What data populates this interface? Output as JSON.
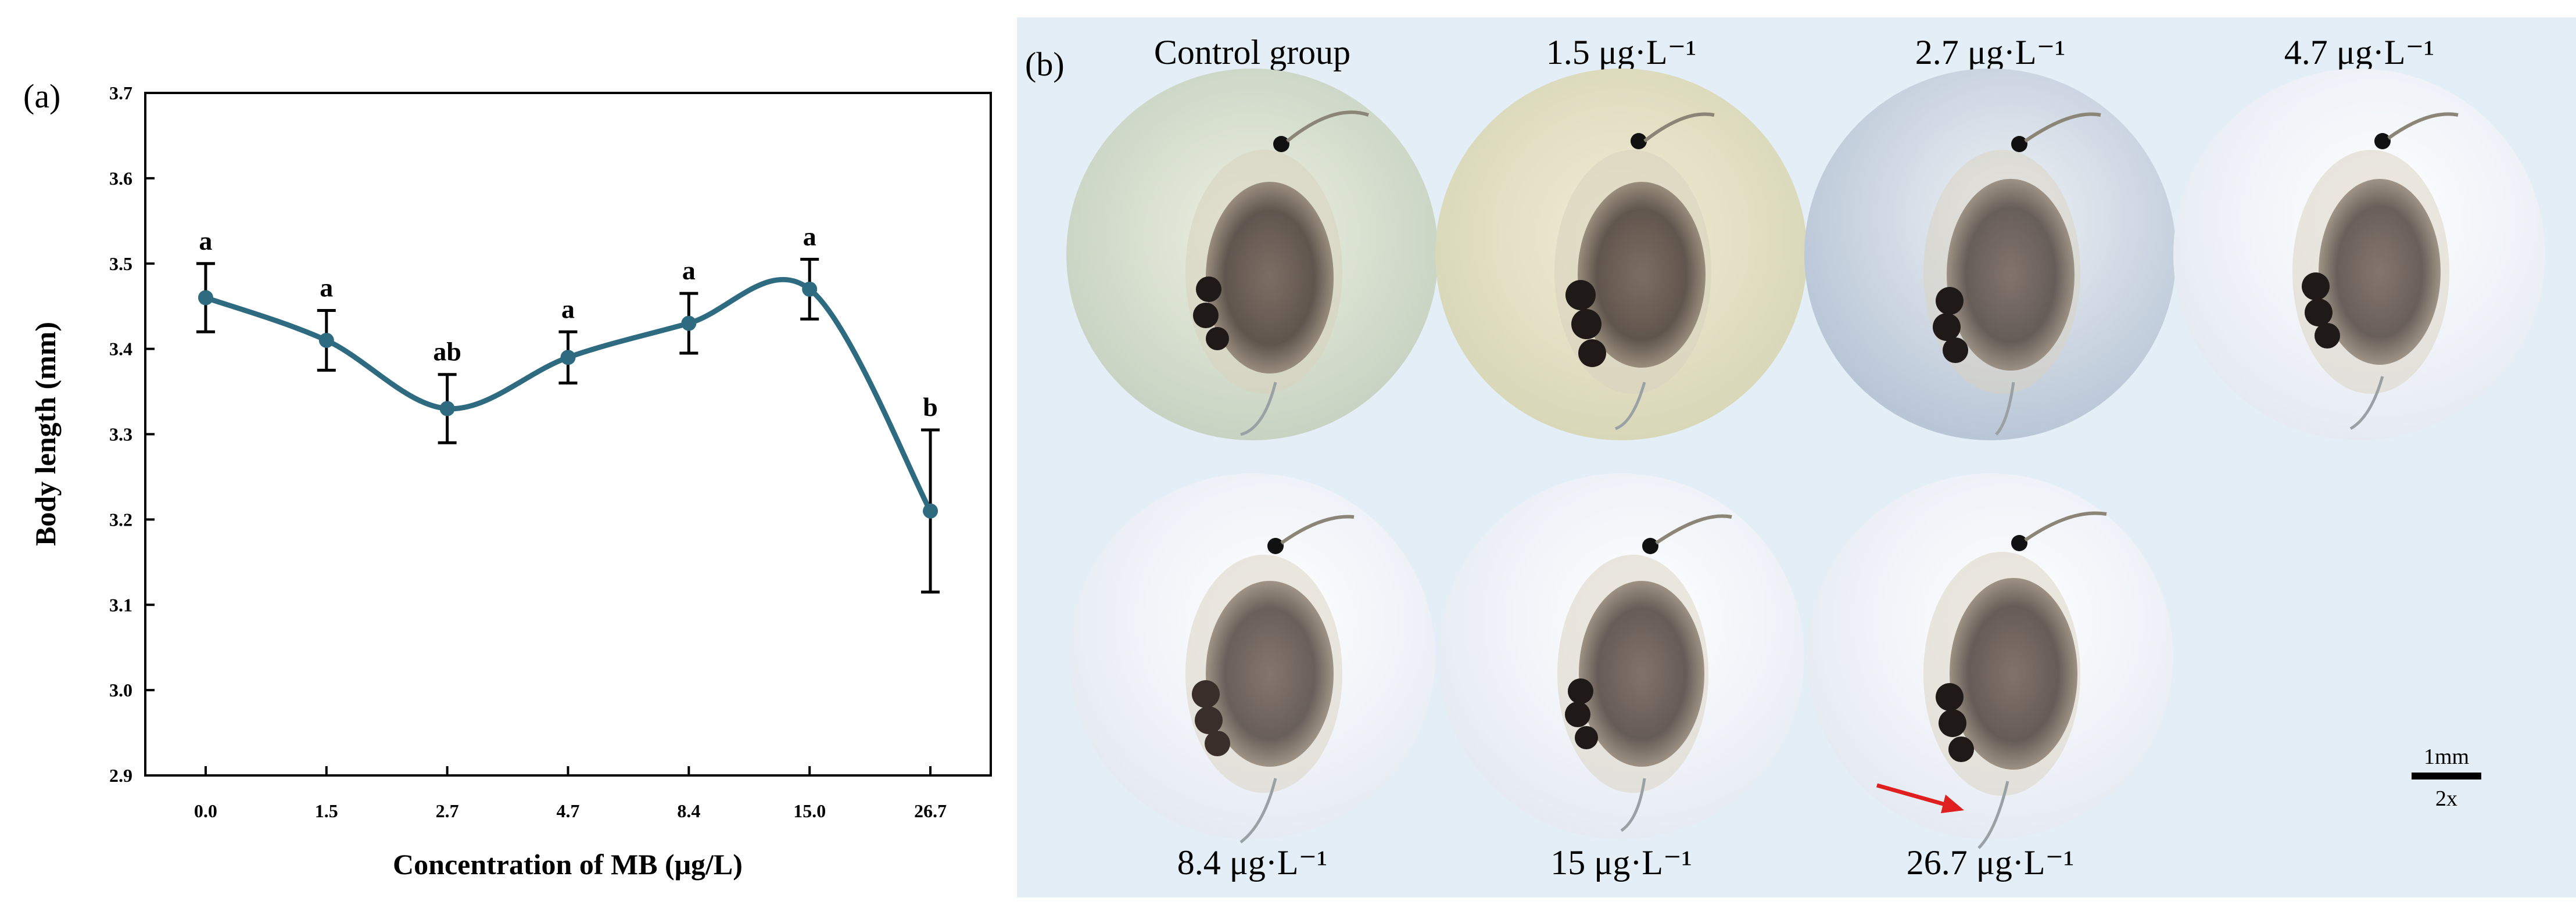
{
  "panel_a_label": "(a)",
  "panel_b_label": "(b)",
  "chart_data": {
    "type": "line",
    "categories": [
      "0.0",
      "1.5",
      "2.7",
      "4.7",
      "8.4",
      "15.0",
      "26.7"
    ],
    "values": [
      3.46,
      3.41,
      3.33,
      3.39,
      3.43,
      3.47,
      3.21
    ],
    "error": [
      0.04,
      0.035,
      0.04,
      0.03,
      0.035,
      0.035,
      0.095
    ],
    "significance": [
      "a",
      "a",
      "ab",
      "a",
      "a",
      "a",
      "b"
    ],
    "xlabel": "Concentration of MB (μg/L)",
    "ylabel": "Body length (mm)",
    "ylim": [
      2.9,
      3.7
    ],
    "yticks": [
      "2.9",
      "3.0",
      "3.1",
      "3.2",
      "3.3",
      "3.4",
      "3.5",
      "3.6",
      "3.7"
    ],
    "line_color": "#2e6b80",
    "grid": false
  },
  "photos": [
    {
      "label": "Control group"
    },
    {
      "label": "1.5 μg·L⁻¹"
    },
    {
      "label": "2.7 μg·L⁻¹"
    },
    {
      "label": "4.7 μg·L⁻¹"
    },
    {
      "label": "8.4 μg·L⁻¹"
    },
    {
      "label": "15 μg·L⁻¹"
    },
    {
      "label": "26.7 μg·L⁻¹"
    }
  ],
  "scale_bar": {
    "length_label": "1mm",
    "magnification": "2x"
  }
}
